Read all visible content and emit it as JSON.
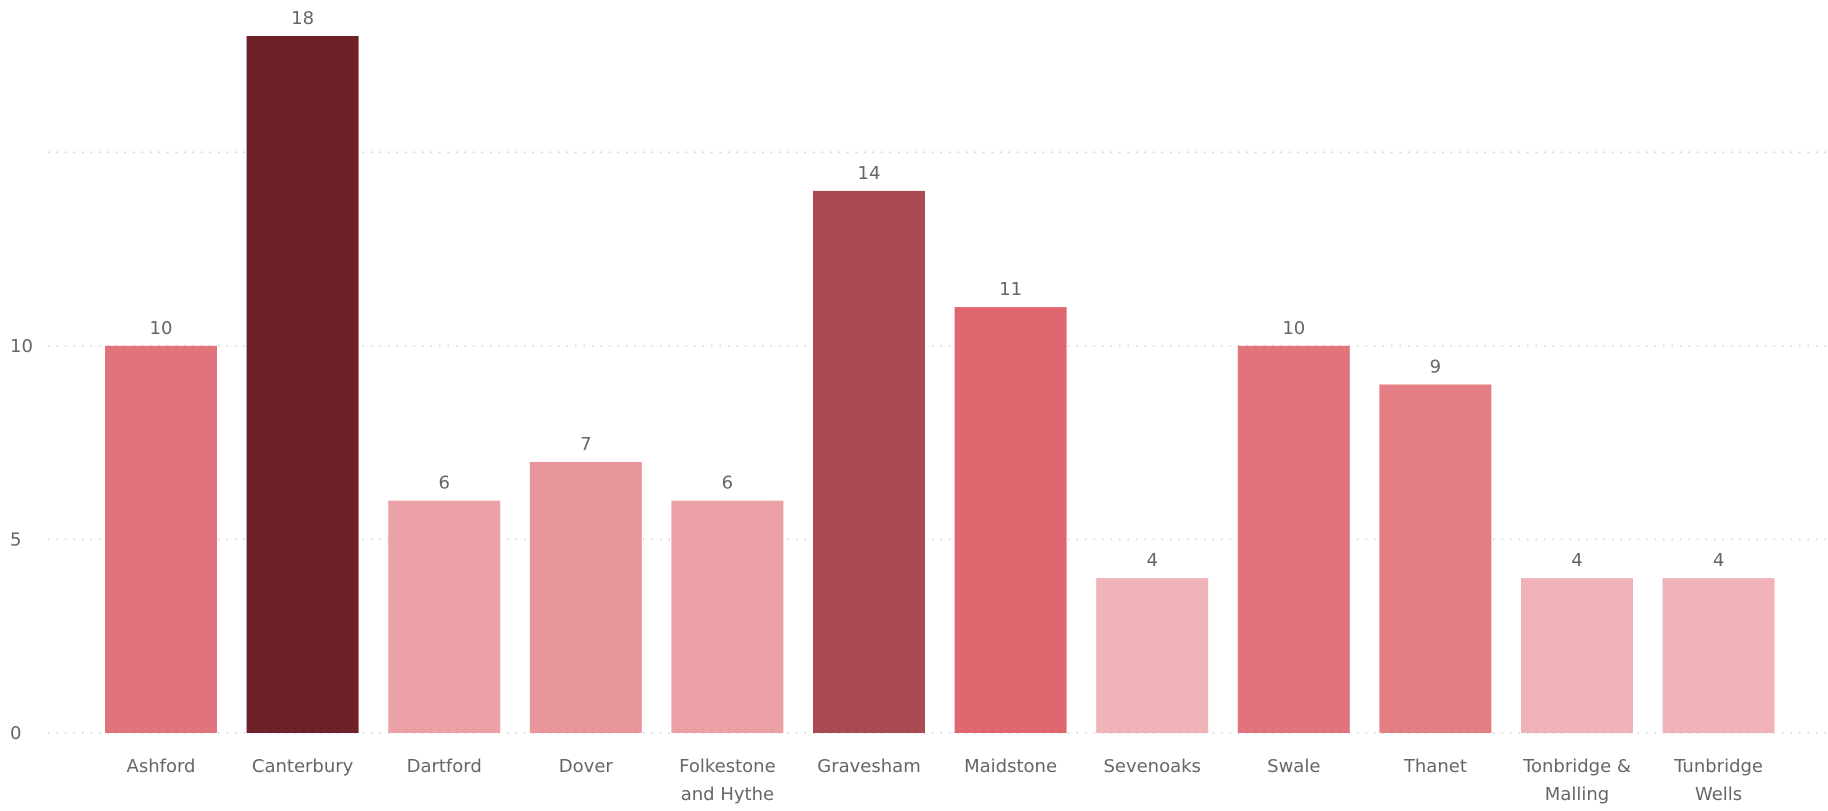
{
  "chart_data": {
    "type": "bar",
    "categories": [
      "Ashford",
      "Canterbury",
      "Dartford",
      "Dover",
      "Folkestone and Hythe",
      "Gravesham",
      "Maidstone",
      "Sevenoaks",
      "Swale",
      "Thanet",
      "Tonbridge & Malling",
      "Tunbridge Wells"
    ],
    "category_lines": [
      [
        "Ashford"
      ],
      [
        "Canterbury"
      ],
      [
        "Dartford"
      ],
      [
        "Dover"
      ],
      [
        "Folkestone",
        "and Hythe"
      ],
      [
        "Gravesham"
      ],
      [
        "Maidstone"
      ],
      [
        "Sevenoaks"
      ],
      [
        "Swale"
      ],
      [
        "Thanet"
      ],
      [
        "Tonbridge &",
        "Malling"
      ],
      [
        "Tunbridge",
        "Wells"
      ]
    ],
    "values": [
      10,
      18,
      6,
      7,
      6,
      14,
      11,
      4,
      10,
      9,
      4,
      4
    ],
    "colors": [
      "#E0737C",
      "#6E2129",
      "#EBA1A5",
      "#E8969B",
      "#EBA1A5",
      "#AA4B53",
      "#E0676F",
      "#F0B3B7",
      "#E0737C",
      "#E37F84",
      "#F0B3B7",
      "#F0B3B7"
    ],
    "ylim": [
      0,
      18
    ],
    "y_ticks": [
      0,
      5,
      10
    ],
    "y_gridlines": [
      0,
      5,
      10,
      15
    ],
    "title": "",
    "xlabel": "",
    "ylabel": "",
    "grid": true,
    "legend": false,
    "data_labels": true
  }
}
